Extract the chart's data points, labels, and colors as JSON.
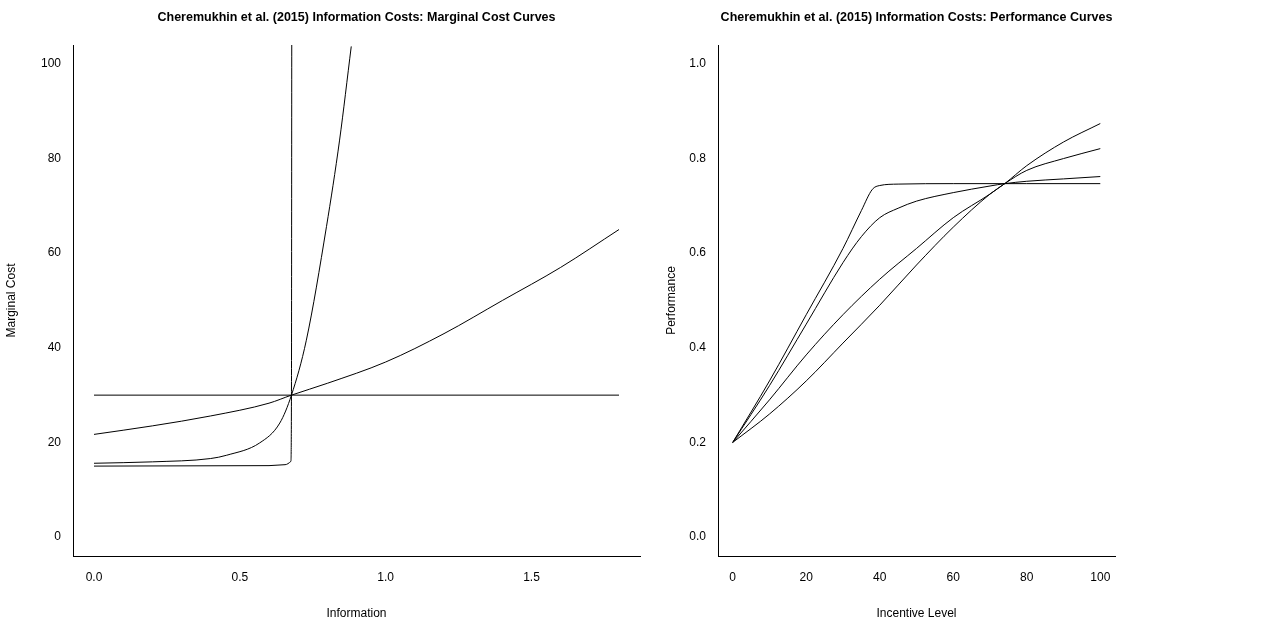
{
  "chart_data": [
    {
      "type": "line",
      "title": "Cheremukhin et al. (2015) Information Costs: Marginal Cost Curves",
      "xlabel": "Information",
      "ylabel": "Marginal Cost",
      "xlim": [
        -0.072,
        1.872
      ],
      "xticks": [
        {
          "value": 0,
          "label": "0.0"
        },
        0.5,
        {
          "value": 1,
          "label": "1.0"
        },
        1.5
      ],
      "ylim": [
        -4,
        104
      ],
      "yticks": [
        0,
        20,
        40,
        60,
        80,
        100
      ],
      "marker": "none",
      "series": [
        {
          "color": "#000000",
          "x": [
            0,
            1.8
          ],
          "values": [
            30,
            30
          ]
        },
        {
          "color": "#000000",
          "x": [
            0,
            0.2,
            0.4,
            0.6,
            0.677,
            0.8,
            1.0,
            1.2,
            1.4,
            1.6,
            1.8
          ],
          "values": [
            21.7,
            23.5,
            25.6,
            28.3,
            30,
            32.5,
            37,
            43,
            50,
            57,
            65
          ]
        },
        {
          "color": "#000000",
          "x": [
            0,
            0.2,
            0.4,
            0.455,
            0.568,
            0.637,
            0.677,
            0.728,
            0.797,
            0.842,
            0.882
          ],
          "values": [
            15.6,
            15.9,
            16.6,
            17.3,
            19.9,
            24.1,
            30,
            41.6,
            65.6,
            83.9,
            103.7
          ]
        },
        {
          "color": "#000000",
          "x": [
            0,
            0.6,
            0.655,
            0.675,
            0.677,
            0.678
          ],
          "values": [
            15,
            15.1,
            15.3,
            16,
            30,
            104
          ]
        }
      ]
    },
    {
      "type": "line",
      "title": "Cheremukhin et al. (2015) Information Costs: Performance Curves",
      "xlabel": "Incentive Level",
      "ylabel": "Performance",
      "xlim": [
        -4,
        104
      ],
      "xticks": [
        0,
        20,
        40,
        60,
        80,
        100
      ],
      "ylim": [
        -0.04,
        1.04
      ],
      "yticks": [
        {
          "value": 0,
          "label": "0.0"
        },
        0.2,
        0.4,
        0.6,
        0.8,
        {
          "value": 1,
          "label": "1.0"
        }
      ],
      "marker": "none",
      "series": [
        {
          "color": "#000000",
          "x": [
            0,
            10,
            20,
            30,
            35,
            38,
            40,
            45,
            60,
            80,
            100
          ],
          "values": [
            0.2,
            0.33,
            0.47,
            0.61,
            0.69,
            0.735,
            0.743,
            0.746,
            0.747,
            0.747,
            0.747
          ]
        },
        {
          "color": "#000000",
          "x": [
            0,
            10,
            20,
            30,
            35,
            40,
            45,
            50,
            60,
            70,
            74,
            80,
            90,
            100
          ],
          "values": [
            0.2,
            0.32,
            0.45,
            0.58,
            0.635,
            0.675,
            0.695,
            0.71,
            0.728,
            0.742,
            0.747,
            0.752,
            0.757,
            0.762
          ]
        },
        {
          "color": "#000000",
          "x": [
            0,
            10,
            20,
            30,
            40,
            50,
            60,
            70,
            74,
            80,
            90,
            100
          ],
          "values": [
            0.2,
            0.29,
            0.385,
            0.47,
            0.545,
            0.61,
            0.675,
            0.725,
            0.747,
            0.775,
            0.8,
            0.821
          ]
        },
        {
          "color": "#000000",
          "x": [
            0,
            10,
            20,
            30,
            40,
            50,
            60,
            70,
            74,
            80,
            90,
            100
          ],
          "values": [
            0.2,
            0.26,
            0.33,
            0.41,
            0.49,
            0.575,
            0.655,
            0.725,
            0.747,
            0.785,
            0.835,
            0.874
          ]
        }
      ]
    }
  ]
}
